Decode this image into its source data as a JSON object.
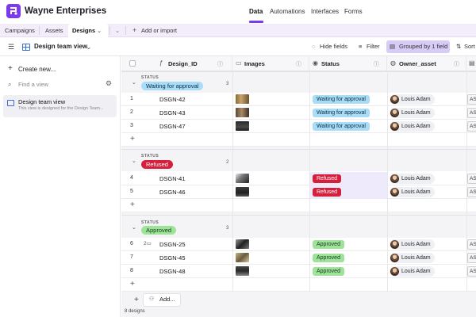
{
  "app": {
    "base_name": "Wayne Enterprises"
  },
  "top_tabs": [
    "Data",
    "Automations",
    "Interfaces",
    "Forms"
  ],
  "table_tabs": {
    "campaigns": "Campaigns",
    "assets": "Assets",
    "designs": "Designs",
    "add_import": "Add or import"
  },
  "view_bar": {
    "view_name": "Design team view",
    "hide_fields": "Hide fields",
    "filter": "Filter",
    "grouped": "Grouped by 1 field",
    "sort": "Sort"
  },
  "sidebar": {
    "create_new": "Create new...",
    "find_placeholder": "Find a view",
    "selected_view": {
      "name": "Design team view",
      "description": "This view is designed for the Design Team..."
    }
  },
  "columns": [
    "Design_ID",
    "Images",
    "Status",
    "Owner_asset"
  ],
  "groups": [
    {
      "label": "STATUS",
      "value": "Waiting for approval",
      "count": "3",
      "rows": [
        {
          "num": "1",
          "id": "DSGN-42",
          "status": "Waiting for approval",
          "owner": "Louis Adam",
          "as": "AS"
        },
        {
          "num": "2",
          "id": "DSGN-43",
          "status": "Waiting for approval",
          "owner": "Louis Adam",
          "as": "AS"
        },
        {
          "num": "3",
          "id": "DSGN-47",
          "status": "Waiting for approval",
          "owner": "Louis Adam",
          "as": "AS"
        }
      ]
    },
    {
      "label": "STATUS",
      "value": "Refused",
      "count": "2",
      "rows": [
        {
          "num": "4",
          "id": "DSGN-41",
          "status": "Refused",
          "owner": "Louis Adam",
          "as": "AS"
        },
        {
          "num": "5",
          "id": "DSGN-46",
          "status": "Refused",
          "owner": "Louis Adam",
          "as": "AS"
        }
      ]
    },
    {
      "label": "STATUS",
      "value": "Approved",
      "count": "3",
      "rows": [
        {
          "num": "6",
          "comments": "2",
          "id": "DSGN-25",
          "status": "Approved",
          "owner": "Louis Adam",
          "as": "AS"
        },
        {
          "num": "7",
          "id": "DSGN-45",
          "status": "Approved",
          "owner": "Louis Adam",
          "as": "AS"
        },
        {
          "num": "8",
          "id": "DSGN-48",
          "status": "Approved",
          "owner": "Louis Adam",
          "as": "AS"
        }
      ]
    }
  ],
  "footer": {
    "add_label": "Add...",
    "record_count": "8 designs"
  },
  "colors": {
    "accent": "#7c3aed",
    "waiting": "#a9dcf7",
    "refused": "#d41f3d",
    "approved": "#9fe39a",
    "grouped_bg": "#d6ccf5"
  }
}
